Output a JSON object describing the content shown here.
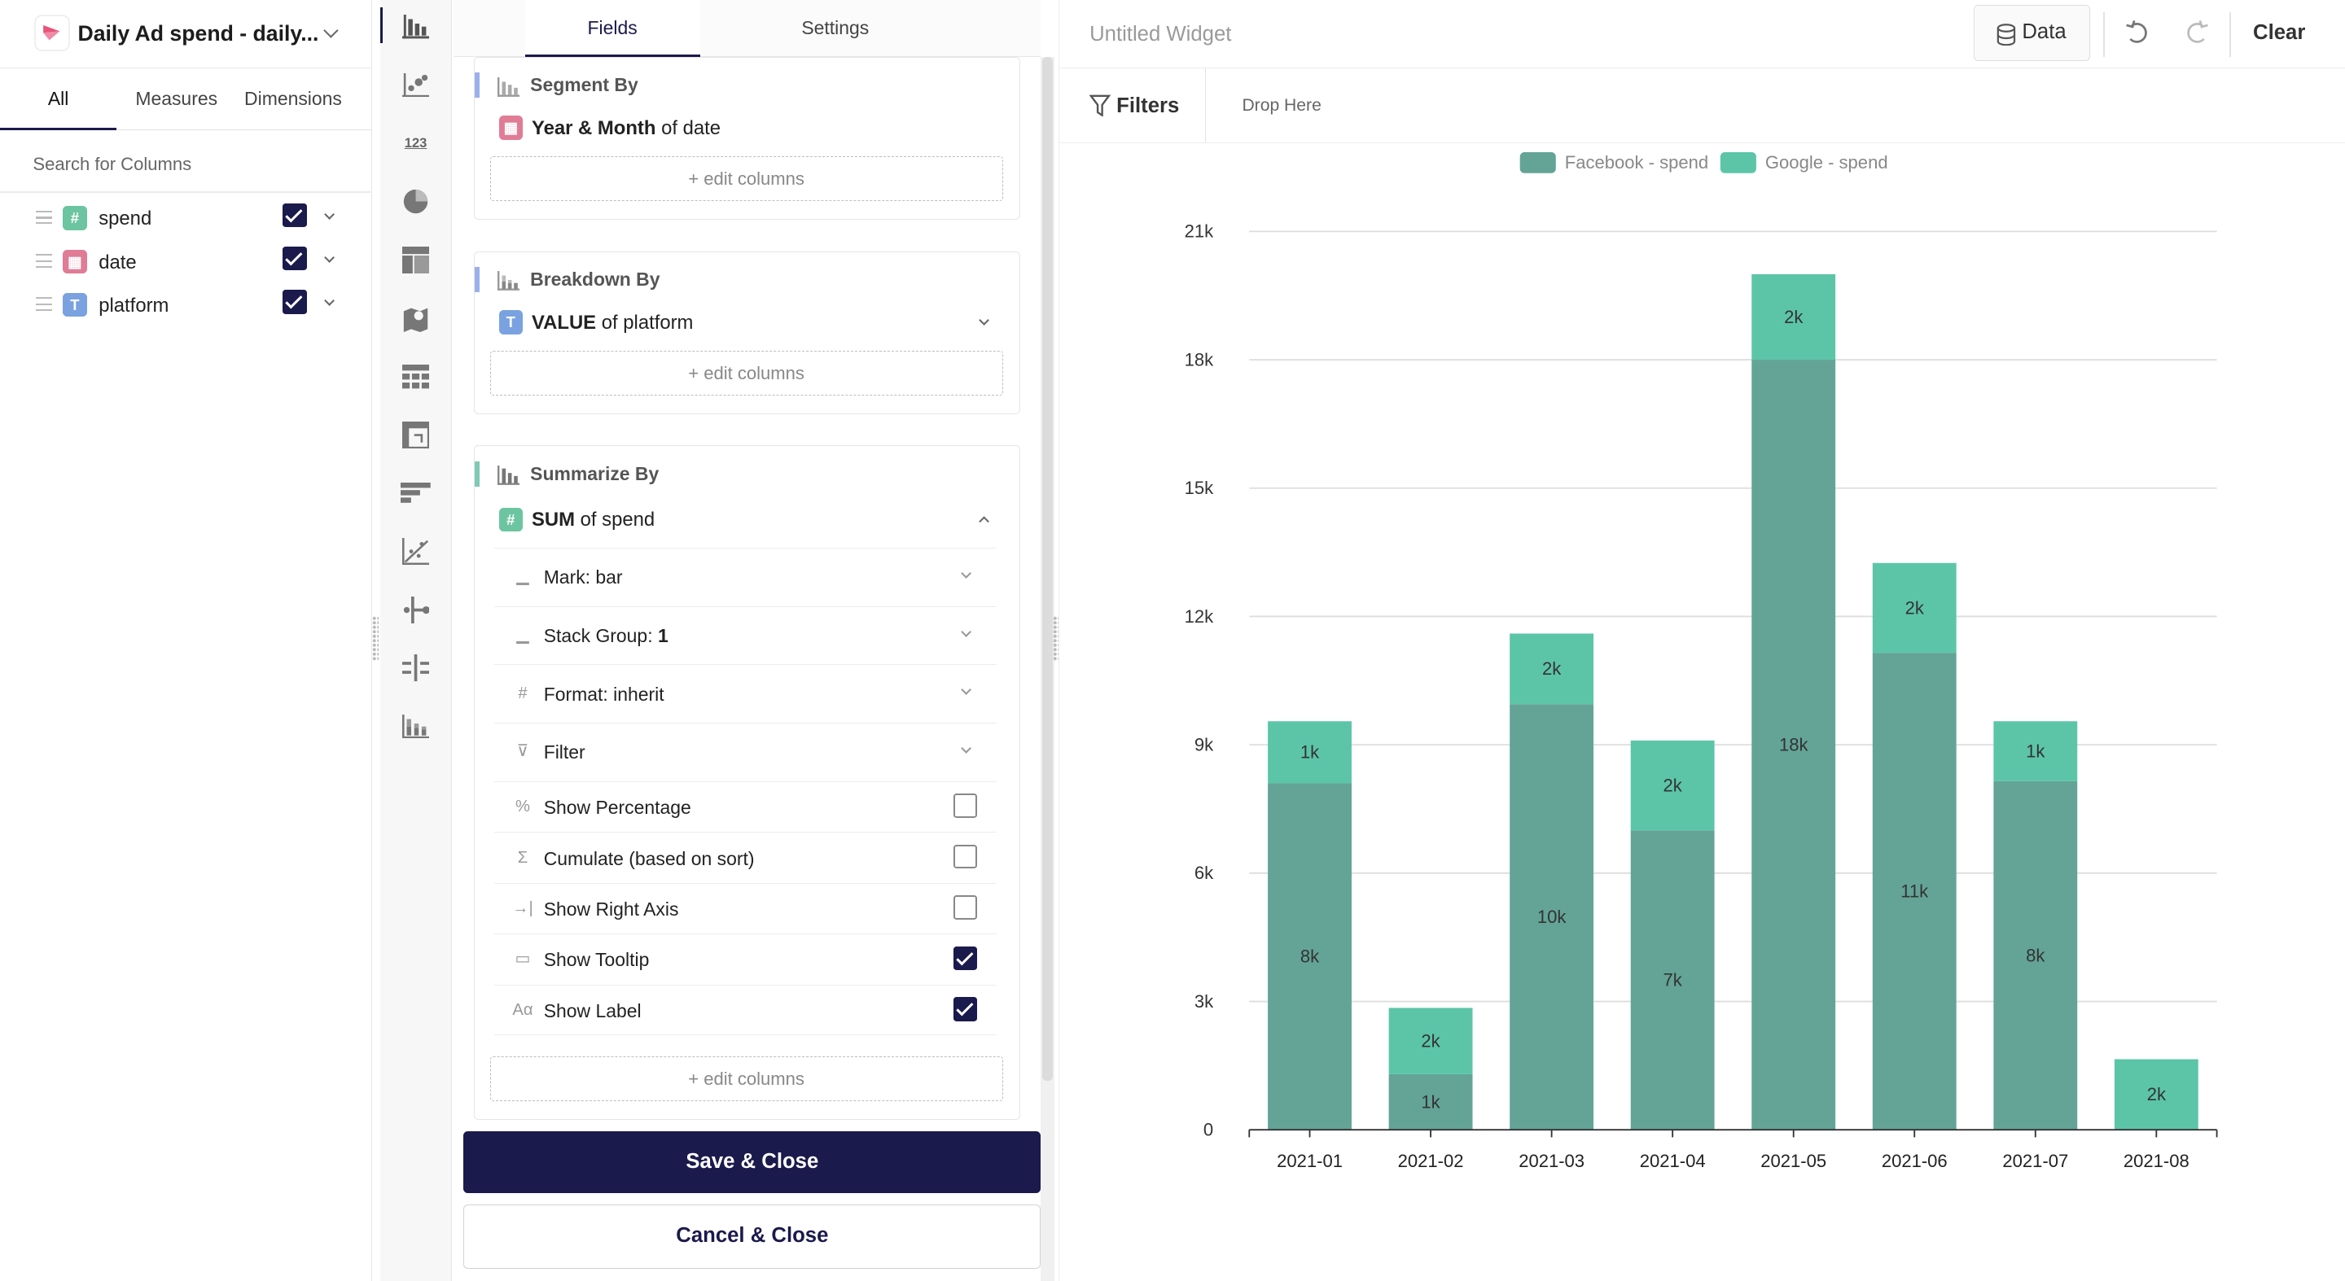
{
  "datasource": {
    "title": "Daily Ad spend - daily..."
  },
  "column_tabs": [
    "All",
    "Measures",
    "Dimensions"
  ],
  "search": {
    "placeholder": "Search for Columns"
  },
  "columns": [
    {
      "name": "spend",
      "type": "number",
      "type_glyph": "#",
      "color": "#6cc5a0",
      "checked": true
    },
    {
      "name": "date",
      "type": "date",
      "type_glyph": "▦",
      "color": "#e07c96",
      "checked": true
    },
    {
      "name": "platform",
      "type": "text",
      "type_glyph": "T",
      "color": "#7aa2e0",
      "checked": true
    }
  ],
  "viz_icons": [
    "bar-chart-icon",
    "scatter-icon",
    "number-icon",
    "pie-icon",
    "treemap-icon",
    "map-icon",
    "table-icon",
    "pivot-icon",
    "funnel-icon",
    "trend-icon",
    "flow-icon",
    "cross-icon",
    "stacked-icon"
  ],
  "viz_number_glyph": "123",
  "fields_tabs": {
    "fields": "Fields",
    "settings": "Settings"
  },
  "segment": {
    "header": "Segment By",
    "field_bold": "Year & Month",
    "field_rest": " of date",
    "edit": "+ edit columns"
  },
  "breakdown": {
    "header": "Breakdown By",
    "field_bold": "VALUE",
    "field_rest": " of platform",
    "edit": "+ edit columns"
  },
  "summarize": {
    "header": "Summarize By",
    "field_bold": "SUM",
    "field_rest": " of spend",
    "options": [
      {
        "label": "Mark: bar",
        "icon": "mark-icon",
        "glyph": "▁",
        "kind": "dropdown"
      },
      {
        "label": "Stack Group: ",
        "bold": "1",
        "icon": "stack-icon",
        "glyph": "▁",
        "kind": "dropdown"
      },
      {
        "label": "Format: inherit",
        "icon": "hash-icon",
        "glyph": "#",
        "kind": "dropdown"
      },
      {
        "label": "Filter",
        "icon": "filter-icon",
        "glyph": "⊽",
        "kind": "dropdown"
      },
      {
        "label": "Show Percentage",
        "icon": "percent-icon",
        "glyph": "%",
        "kind": "checkbox",
        "checked": false
      },
      {
        "label": "Cumulate (based on sort)",
        "icon": "sigma-icon",
        "glyph": "Σ",
        "kind": "checkbox",
        "checked": false
      },
      {
        "label": "Show Right Axis",
        "icon": "right-axis-icon",
        "glyph": "→|",
        "kind": "checkbox",
        "checked": false
      },
      {
        "label": "Show Tooltip",
        "icon": "tooltip-icon",
        "glyph": "▭",
        "kind": "checkbox",
        "checked": true
      },
      {
        "label": "Show Label",
        "icon": "label-icon",
        "glyph": "Aα",
        "kind": "checkbox",
        "checked": true
      }
    ],
    "edit": "+ edit columns"
  },
  "buttons": {
    "save": "Save & Close",
    "cancel": "Cancel & Close"
  },
  "widget": {
    "title": "Untitled Widget",
    "data_btn": "Data",
    "clear_btn": "Clear",
    "filters_label": "Filters",
    "drop_here": "Drop Here"
  },
  "colors": {
    "facebook": "#63a496",
    "google": "#5cc5a8",
    "primary": "#1b1a4c"
  },
  "chart_data": {
    "type": "bar",
    "stacked": true,
    "categories": [
      "2021-01",
      "2021-02",
      "2021-03",
      "2021-04",
      "2021-05",
      "2021-06",
      "2021-07",
      "2021-08"
    ],
    "series": [
      {
        "name": "Facebook - spend",
        "values": [
          8100,
          1300,
          9950,
          7000,
          18000,
          11150,
          8150,
          0
        ],
        "labels": [
          "8k",
          "1k",
          "10k",
          "7k",
          "18k",
          "11k",
          "8k",
          ""
        ]
      },
      {
        "name": "Google - spend",
        "values": [
          1450,
          1550,
          1650,
          2100,
          2000,
          2100,
          1400,
          1650
        ],
        "labels": [
          "1k",
          "2k",
          "2k",
          "2k",
          "2k",
          "2k",
          "1k",
          "2k"
        ]
      }
    ],
    "ylim": [
      0,
      21000
    ],
    "yticks": [
      0,
      3000,
      6000,
      9000,
      12000,
      15000,
      18000,
      21000
    ],
    "ytick_labels": [
      "0",
      "3k",
      "6k",
      "9k",
      "12k",
      "15k",
      "18k",
      "21k"
    ],
    "legend": "top-center",
    "grid": true
  }
}
